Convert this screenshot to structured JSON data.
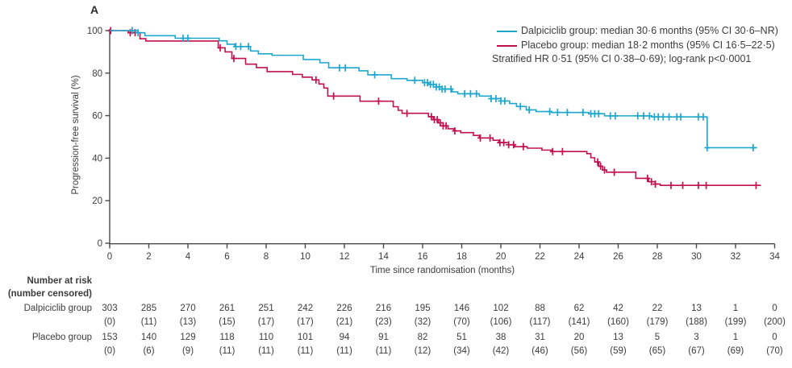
{
  "figure": {
    "panel_label": "A",
    "legend": {
      "dalpiciclib_label": "Dalpiciclib group: median 30·6 months (95% CI 30·6–NR)",
      "placebo_label": "Placebo group: median 18·2 months (95% CI 16·5–22·5)",
      "stratified_note": "Stratified HR 0·51 (95% CI 0·38–0·69); log-rank p<0·0001"
    },
    "colors": {
      "dalpiciclib": "#1ea7cd",
      "placebo": "#c0114d",
      "axis": "#4a4a4a",
      "text": "#3c3c3c"
    }
  },
  "chart_data": {
    "type": "line",
    "subtype": "kaplan-meier-step",
    "title": "",
    "xlabel": "Time since randomisation (months)",
    "ylabel": "Progression-free survival (%)",
    "xlim": [
      0,
      34
    ],
    "ylim": [
      0,
      100
    ],
    "xticks": [
      0,
      2,
      4,
      6,
      8,
      10,
      12,
      14,
      16,
      18,
      20,
      22,
      24,
      26,
      28,
      30,
      32,
      34
    ],
    "yticks": [
      0,
      20,
      40,
      60,
      80,
      100
    ],
    "grid": false,
    "legend_position": "top-right",
    "series": [
      {
        "name": "Placebo group",
        "color": "#c0114d",
        "steps": [
          [
            0,
            100
          ],
          [
            0.95,
            99
          ],
          [
            1.55,
            96.2
          ],
          [
            1.85,
            95.1
          ],
          [
            5.55,
            91.9
          ],
          [
            5.9,
            90.0
          ],
          [
            6.25,
            86.9
          ],
          [
            6.95,
            84.2
          ],
          [
            7.5,
            82.6
          ],
          [
            8.05,
            80.7
          ],
          [
            9.35,
            79.4
          ],
          [
            9.85,
            78.1
          ],
          [
            10.35,
            76.8
          ],
          [
            10.7,
            74.9
          ],
          [
            10.95,
            73.0
          ],
          [
            11.15,
            69.2
          ],
          [
            12.8,
            66.8
          ],
          [
            14.5,
            64.2
          ],
          [
            14.75,
            62.5
          ],
          [
            14.95,
            61.1
          ],
          [
            16.3,
            59.5
          ],
          [
            16.55,
            58.1
          ],
          [
            16.8,
            56.6
          ],
          [
            17.05,
            55.2
          ],
          [
            17.3,
            53.8
          ],
          [
            17.6,
            52.8
          ],
          [
            17.95,
            52.0
          ],
          [
            18.6,
            50.7
          ],
          [
            18.9,
            49.5
          ],
          [
            19.6,
            48.4
          ],
          [
            19.9,
            47.3
          ],
          [
            20.4,
            46.3
          ],
          [
            20.7,
            45.4
          ],
          [
            21.35,
            44.7
          ],
          [
            22.1,
            43.8
          ],
          [
            22.6,
            43.1
          ],
          [
            24.4,
            42.1
          ],
          [
            24.6,
            40.2
          ],
          [
            24.8,
            38.2
          ],
          [
            25.0,
            36.2
          ],
          [
            25.2,
            34.4
          ],
          [
            25.4,
            33.4
          ],
          [
            26.9,
            30.5
          ],
          [
            27.55,
            28.9
          ],
          [
            27.9,
            27.8
          ],
          [
            28.15,
            27.2
          ],
          [
            33.3,
            27.2
          ]
        ],
        "censor_marks": [
          0.05,
          1.05,
          1.3,
          5.65,
          6.35,
          10.55,
          11.45,
          13.75,
          15.2,
          16.45,
          16.6,
          16.75,
          16.9,
          17.05,
          17.2,
          17.65,
          18.95,
          19.45,
          19.95,
          20.15,
          20.4,
          20.65,
          21.15,
          22.65,
          23.15,
          24.95,
          25.1,
          25.3,
          25.8,
          27.5,
          27.7,
          27.9,
          28.7,
          29.3,
          30.1,
          30.5,
          33.05
        ]
      },
      {
        "name": "Dalpiciclib group",
        "color": "#1ea7cd",
        "steps": [
          [
            0,
            100
          ],
          [
            1.45,
            99
          ],
          [
            1.8,
            97.6
          ],
          [
            3.35,
            96.4
          ],
          [
            5.6,
            95.2
          ],
          [
            6.0,
            93.6
          ],
          [
            6.4,
            92.5
          ],
          [
            7.2,
            90.4
          ],
          [
            7.6,
            89.1
          ],
          [
            8.3,
            88.4
          ],
          [
            9.9,
            86.4
          ],
          [
            10.75,
            84.9
          ],
          [
            11.2,
            82.5
          ],
          [
            12.75,
            81.1
          ],
          [
            13.2,
            79.2
          ],
          [
            14.4,
            77.4
          ],
          [
            15.2,
            76.6
          ],
          [
            16.0,
            75.5
          ],
          [
            16.3,
            74.7
          ],
          [
            16.7,
            73.5
          ],
          [
            17.0,
            72.5
          ],
          [
            17.5,
            71.2
          ],
          [
            17.8,
            70.3
          ],
          [
            18.9,
            69.2
          ],
          [
            19.5,
            68.0
          ],
          [
            20.0,
            66.9
          ],
          [
            20.45,
            65.7
          ],
          [
            20.8,
            64.3
          ],
          [
            21.3,
            62.7
          ],
          [
            21.8,
            61.9
          ],
          [
            22.6,
            61.5
          ],
          [
            24.5,
            60.9
          ],
          [
            25.3,
            59.9
          ],
          [
            27.7,
            59.4
          ],
          [
            30.55,
            44.9
          ],
          [
            33.1,
            44.9
          ]
        ],
        "censor_marks": [
          1.15,
          1.45,
          3.75,
          4.0,
          6.45,
          6.7,
          7.1,
          11.75,
          12.05,
          13.55,
          15.6,
          16.1,
          16.25,
          16.4,
          16.55,
          16.7,
          16.85,
          17.0,
          17.15,
          17.45,
          18.15,
          18.45,
          18.75,
          19.5,
          19.75,
          20.0,
          20.2,
          21.0,
          21.45,
          22.5,
          22.9,
          23.4,
          24.2,
          24.6,
          24.8,
          25.0,
          25.6,
          25.85,
          27.0,
          27.3,
          27.6,
          27.85,
          28.05,
          28.3,
          28.6,
          29.0,
          29.2,
          30.1,
          30.35,
          30.55,
          32.9
        ]
      }
    ]
  },
  "risk_table": {
    "header_line1": "Number at risk",
    "header_line2": "(number censored)",
    "rows": [
      {
        "label": "Dalpiciclib group",
        "at_risk": [
          303,
          285,
          270,
          261,
          251,
          242,
          226,
          216,
          195,
          146,
          102,
          88,
          62,
          42,
          22,
          13,
          1,
          0
        ],
        "censored": [
          0,
          11,
          13,
          15,
          17,
          17,
          21,
          23,
          32,
          70,
          106,
          117,
          141,
          160,
          179,
          188,
          199,
          200
        ]
      },
      {
        "label": "Placebo group",
        "at_risk": [
          153,
          140,
          129,
          118,
          110,
          101,
          94,
          91,
          82,
          51,
          38,
          31,
          20,
          13,
          5,
          3,
          1,
          0
        ],
        "censored": [
          0,
          6,
          9,
          11,
          11,
          11,
          11,
          11,
          12,
          34,
          42,
          46,
          56,
          59,
          65,
          67,
          69,
          70
        ]
      }
    ]
  }
}
